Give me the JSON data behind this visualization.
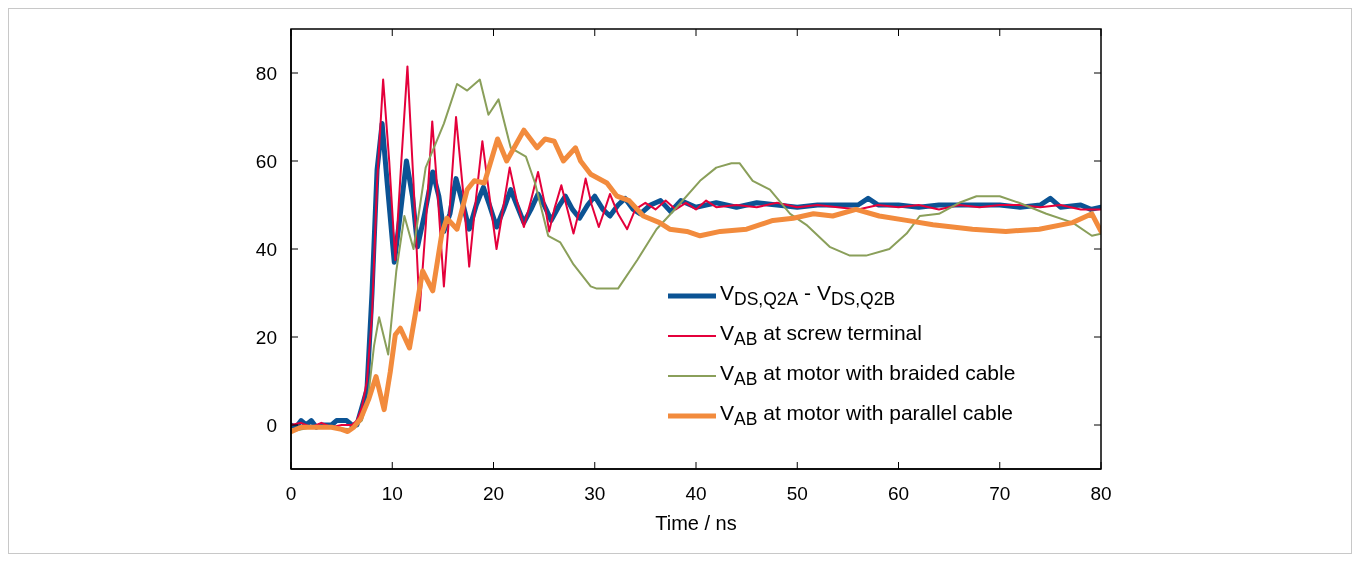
{
  "chart_data": {
    "type": "line",
    "xlabel": "Time / ns",
    "xlim": [
      0,
      80
    ],
    "xticks": [
      0,
      10,
      20,
      30,
      40,
      50,
      60,
      70,
      80
    ],
    "ylim": [
      -10,
      90
    ],
    "yticks": [
      0,
      20,
      40,
      60,
      80
    ],
    "legend": "bottom right",
    "marker": "none",
    "line_style": "solid",
    "series": [
      {
        "name": "V$_{DS,Q2A}$ - V$_{DS,Q2B}$",
        "color": "#0b5394",
        "x": [
          0,
          0.5,
          1,
          1.5,
          2,
          2.5,
          3,
          4,
          4.5,
          5.5,
          6,
          6.5,
          7.5,
          8,
          8.5,
          9,
          9.5,
          10.2,
          10.8,
          11.4,
          12,
          12.5,
          13.2,
          14,
          14.6,
          15.1,
          15.7,
          16.3,
          17,
          17.6,
          18.3,
          19,
          19.6,
          20.3,
          21,
          21.7,
          22.3,
          23,
          23.7,
          24.4,
          25,
          25.7,
          26.4,
          27.1,
          27.8,
          28.5,
          29.3,
          30,
          30.8,
          31.5,
          32.3,
          33,
          33.8,
          34.5,
          35.5,
          36.5,
          37.5,
          38.5,
          40,
          42,
          44,
          46,
          48,
          50,
          52,
          54,
          56,
          57,
          58,
          60,
          62,
          64,
          66,
          68,
          70,
          72,
          74,
          75,
          76,
          78,
          79,
          80
        ],
        "values": [
          0,
          -0.5,
          1,
          0,
          1,
          -0.5,
          0,
          0,
          1,
          1,
          0,
          0,
          8,
          30,
          58,
          68.5,
          55,
          37,
          48,
          60,
          52,
          40.5,
          48,
          57.5,
          52,
          44,
          48,
          56,
          50,
          44.5,
          50,
          54,
          50,
          45,
          49,
          53.5,
          50,
          46,
          49,
          52.5,
          50,
          46.5,
          49.5,
          52,
          49,
          47,
          50,
          52,
          49,
          47.5,
          50,
          51.5,
          49,
          48,
          50,
          51,
          48.5,
          51,
          49.5,
          50.5,
          49.5,
          50.5,
          50,
          49.5,
          50,
          50,
          50,
          51.5,
          50,
          50,
          49.5,
          50,
          50,
          50,
          50,
          49.5,
          50,
          51.5,
          49.5,
          50,
          49,
          49.5
        ]
      },
      {
        "name": "V$_{AB}$ at screw terminal",
        "color": "#e4003b",
        "x": [
          0,
          1,
          2,
          3,
          4,
          5,
          6,
          6.5,
          7,
          7.5,
          8,
          8.5,
          9.1,
          9.7,
          10.3,
          10.9,
          11.5,
          12.1,
          12.7,
          13.3,
          13.95,
          14.5,
          15.1,
          15.7,
          16.3,
          17,
          17.6,
          18.2,
          18.9,
          19.6,
          20.3,
          21,
          21.6,
          22.3,
          23,
          23.7,
          24.4,
          25,
          25.5,
          26,
          26.7,
          27.3,
          27.9,
          28.5,
          29.1,
          29.7,
          30.4,
          31,
          31.5,
          32.3,
          33.2,
          34,
          35,
          36,
          37,
          38,
          39,
          40,
          41,
          42,
          44,
          46,
          48,
          50,
          52,
          54,
          56,
          58,
          60,
          62,
          64,
          66,
          68,
          70,
          72,
          74,
          76,
          78,
          80
        ],
        "values": [
          0,
          0.5,
          -0.5,
          0.5,
          -0.5,
          0,
          0,
          1,
          4,
          10,
          25,
          55,
          78.5,
          60,
          37.5,
          60,
          81.5,
          55,
          26,
          45,
          69,
          52,
          31.5,
          50,
          70,
          53,
          36,
          50,
          64.5,
          52,
          40,
          50,
          58.5,
          51,
          45,
          51,
          57.5,
          51,
          44,
          49,
          54.5,
          49,
          43.5,
          49,
          56,
          50,
          45,
          49,
          52.5,
          48,
          44.5,
          49,
          50.5,
          49,
          51,
          49,
          50.5,
          49,
          51,
          49.5,
          50,
          49.5,
          50.5,
          49.5,
          50,
          49.5,
          49,
          50,
          49.5,
          50,
          49,
          50,
          49.5,
          50,
          50,
          49.5,
          50,
          49,
          49
        ]
      },
      {
        "name": "V$_{AB}$ at motor with braided cable",
        "color": "#8a9f5a",
        "x": [
          0,
          2,
          4,
          6,
          7,
          7.6,
          8.2,
          8.7,
          9.6,
          10.4,
          11.2,
          12.1,
          13.3,
          15.1,
          16.4,
          17.4,
          18.65,
          19.5,
          20.5,
          21.7,
          23.2,
          24.1,
          25.4,
          26.6,
          27.9,
          29.6,
          30.2,
          32.3,
          34.2,
          36.1,
          38.1,
          40.4,
          42,
          43.5,
          44.3,
          45.6,
          47.3,
          49.3,
          50.9,
          53.2,
          55.2,
          56.8,
          59.1,
          60.8,
          62.1,
          64,
          66,
          67.7,
          70,
          71.9,
          74.6,
          77.2,
          79.1,
          80
        ],
        "values": [
          -1.5,
          -0.5,
          -0.5,
          -1,
          1,
          6,
          18,
          24.5,
          16,
          35,
          47.5,
          40,
          58.5,
          68.5,
          77.5,
          76,
          78.5,
          70.5,
          74,
          63,
          61,
          55,
          43,
          41.5,
          36.5,
          31.5,
          31,
          31,
          37.5,
          44.5,
          49.5,
          55.5,
          58.5,
          59.5,
          59.5,
          55.5,
          53.5,
          48,
          45.5,
          40.5,
          38.5,
          38.5,
          40,
          43.5,
          47.5,
          48,
          50.5,
          52,
          52,
          50.5,
          48,
          46,
          43,
          43.5
        ]
      },
      {
        "name": "V$_{AB}$ at motor with parallel cable",
        "color": "#f28b3d",
        "x": [
          0,
          1,
          2,
          3,
          4,
          5,
          5.6,
          6.2,
          6.9,
          7.7,
          8.4,
          9.2,
          9.8,
          10.3,
          10.8,
          11.7,
          12.3,
          13,
          14,
          14.9,
          15.4,
          16.4,
          17.4,
          18.1,
          19.1,
          20.4,
          21.3,
          23,
          24.3,
          25.1,
          26,
          26.9,
          28.1,
          28.6,
          29.6,
          31.2,
          32.2,
          33.4,
          34.8,
          36.4,
          37.4,
          39.1,
          40.4,
          42.4,
          45,
          47.6,
          49.6,
          51.6,
          53.5,
          55.8,
          58.1,
          60.8,
          63.4,
          67.3,
          70.6,
          73.9,
          77.2,
          79.1,
          80
        ],
        "values": [
          -1.5,
          -0.5,
          -0.5,
          -0.5,
          -0.5,
          -1,
          -1.5,
          -0.5,
          1.5,
          6,
          11,
          3.5,
          12,
          20.5,
          22,
          17.5,
          25.5,
          35,
          30.5,
          43.5,
          47,
          44.5,
          53.5,
          55.5,
          55,
          65,
          60,
          67,
          63,
          65,
          64.5,
          60,
          63,
          60,
          57,
          55,
          52,
          51,
          47.5,
          46,
          44.5,
          44,
          43,
          44,
          44.5,
          46.5,
          47,
          48,
          47.5,
          49,
          47.5,
          46.5,
          45.5,
          44.5,
          44,
          44.5,
          46,
          48,
          44
        ]
      }
    ]
  }
}
